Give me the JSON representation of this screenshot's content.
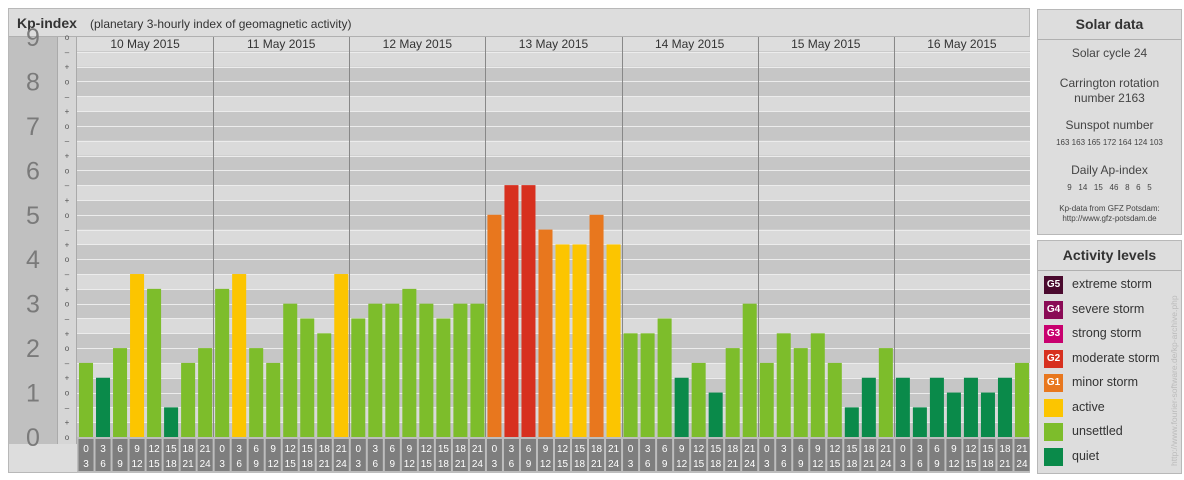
{
  "header": {
    "title": "Kp-index",
    "subtitle": "(planetary 3-hourly index of geomagnetic activity)"
  },
  "chart_data": {
    "type": "bar",
    "title": "Kp-index",
    "subtitle": "(planetary 3-hourly index of geomagnetic activity)",
    "ylim": [
      0,
      9
    ],
    "y_ticks": [
      "0",
      "1",
      "2",
      "3",
      "4",
      "5",
      "6",
      "7",
      "8",
      "9"
    ],
    "minor_ticks": [
      "o",
      "+",
      "–"
    ],
    "days": [
      "10 May 2015",
      "11 May 2015",
      "12 May 2015",
      "13 May 2015",
      "14 May 2015",
      "15 May 2015",
      "16 May 2015"
    ],
    "slot_labels": [
      [
        "0",
        "3"
      ],
      [
        "3",
        "6"
      ],
      [
        "6",
        "9"
      ],
      [
        "9",
        "12"
      ],
      [
        "12",
        "15"
      ],
      [
        "15",
        "18"
      ],
      [
        "18",
        "21"
      ],
      [
        "21",
        "24"
      ]
    ],
    "values": [
      1.667,
      1.333,
      2.0,
      3.667,
      3.333,
      0.667,
      1.667,
      2.0,
      3.333,
      3.667,
      2.0,
      1.667,
      3.0,
      2.667,
      2.333,
      3.667,
      2.667,
      3.0,
      3.0,
      3.333,
      3.0,
      2.667,
      3.0,
      3.0,
      5.0,
      5.667,
      5.667,
      4.667,
      4.333,
      4.333,
      5.0,
      4.333,
      2.333,
      2.333,
      2.667,
      1.333,
      1.667,
      1.0,
      2.0,
      3.0,
      1.667,
      2.333,
      2.0,
      2.333,
      1.667,
      0.667,
      1.333,
      2.0,
      1.333,
      0.667,
      1.333,
      1.0,
      1.333,
      1.0,
      1.333,
      1.667
    ],
    "grid": true
  },
  "colors": {
    "quiet": "#0a8a4a",
    "unsettled": "#7dbd2b",
    "active": "#fcc500",
    "g1": "#e8771e",
    "g2": "#d7301f",
    "g3": "#c8006e",
    "g4": "#8a0a55",
    "g5": "#4a0a2e",
    "band_dark": "#c6c6c6",
    "band_light": "#dadada",
    "axis_bg": "#c0c0c0",
    "slot_bg": "#7e7e7e"
  },
  "solar": {
    "title": "Solar data",
    "cycle": "Solar cycle 24",
    "carrington_line1": "Carrington rotation",
    "carrington_line2": "number 2163",
    "sunspot_title": "Sunspot number",
    "sunspot_values": "163 163 165 172 164 124 103",
    "ap_title": "Daily Ap-index",
    "ap_values": "9   14   15   46   8   6   5",
    "source_line1": "Kp-data from GFZ Potsdam:",
    "source_line2": "http://www.gfz-potsdam.de"
  },
  "activity": {
    "title": "Activity levels",
    "levels": [
      {
        "code": "G5",
        "label": "extreme storm",
        "color": "#4a0a2e"
      },
      {
        "code": "G4",
        "label": "severe storm",
        "color": "#8a0a55"
      },
      {
        "code": "G3",
        "label": "strong storm",
        "color": "#c8006e"
      },
      {
        "code": "G2",
        "label": "moderate storm",
        "color": "#d7301f"
      },
      {
        "code": "G1",
        "label": "minor storm",
        "color": "#e8771e"
      },
      {
        "code": "",
        "label": "active",
        "color": "#fcc500"
      },
      {
        "code": "",
        "label": "unsettled",
        "color": "#7dbd2b"
      },
      {
        "code": "",
        "label": "quiet",
        "color": "#0a8a4a"
      }
    ]
  },
  "credit": "http://www.fourier-software.de/kp-archive.php"
}
